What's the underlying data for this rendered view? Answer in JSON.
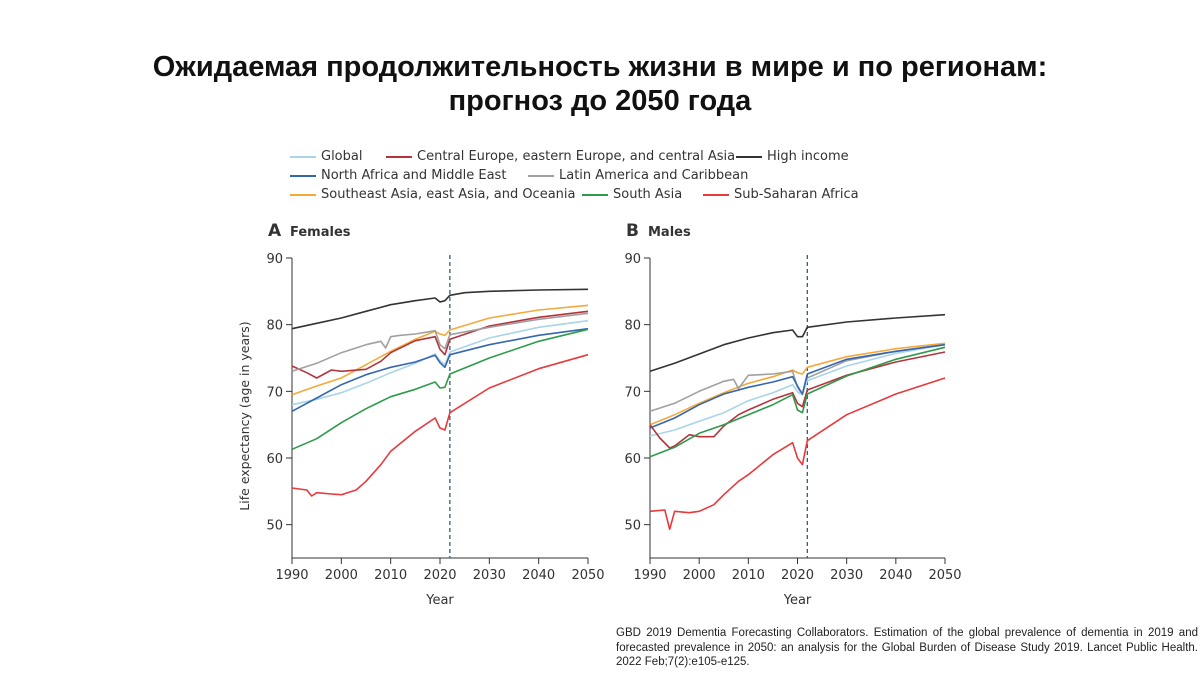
{
  "slide": {
    "title_line1": "Ожидаемая продолжительность жизни в мире и по регионам:",
    "title_line2": "прогноз до 2050 года",
    "citation": "GBD 2019 Dementia Forecasting Collaborators. Estimation of the global prevalence of dementia in 2019 and forecasted prevalence in 2050: an analysis for the Global Burden of Disease Study 2019. Lancet Public Health. 2022 Feb;7(2):e105-e125."
  },
  "legend": [
    {
      "name": "Global",
      "color": "#a8d5e8"
    },
    {
      "name": "Central Europe, eastern Europe, and central Asia",
      "color": "#b5343c"
    },
    {
      "name": "High income",
      "color": "#333333"
    },
    {
      "name": "North Africa and Middle East",
      "color": "#3566b0"
    },
    {
      "name": "Latin America and Caribbean",
      "color": "#a0a0a0"
    },
    {
      "name": "Southeast Asia, east Asia, and Oceania",
      "color": "#f4a93c"
    },
    {
      "name": "South Asia",
      "color": "#2e9a4a"
    },
    {
      "name": "Sub-Saharan Africa",
      "color": "#e8393c"
    }
  ],
  "chart_data": [
    {
      "type": "line",
      "panel_letter": "A",
      "title": "Females",
      "xlabel": "Year",
      "ylabel": "Life expectancy (age in years)",
      "xlim": [
        1990,
        2050
      ],
      "ylim": [
        45,
        90
      ],
      "xticks": [
        1990,
        2000,
        2010,
        2020,
        2030,
        2040,
        2050
      ],
      "yticks": [
        50,
        60,
        70,
        80,
        90
      ],
      "forecast_start": 2022,
      "series": [
        {
          "name": "High income",
          "color": "#333333",
          "x": [
            1990,
            1995,
            2000,
            2005,
            2010,
            2015,
            2019,
            2020,
            2021,
            2022,
            2025,
            2030,
            2040,
            2050
          ],
          "y": [
            79.4,
            80.2,
            81.0,
            82.0,
            83.0,
            83.6,
            84.0,
            83.4,
            83.6,
            84.4,
            84.8,
            85.0,
            85.2,
            85.3
          ]
        },
        {
          "name": "Southeast Asia, east Asia, and Oceania",
          "color": "#f4a93c",
          "x": [
            1990,
            1995,
            2000,
            2005,
            2010,
            2015,
            2019,
            2020,
            2021,
            2022,
            2030,
            2040,
            2050
          ],
          "y": [
            69.5,
            70.8,
            72.0,
            74.0,
            76.0,
            77.8,
            79.0,
            78.6,
            78.4,
            79.2,
            81.0,
            82.2,
            82.9
          ]
        },
        {
          "name": "Central Europe, eastern Europe, and central Asia",
          "color": "#b5343c",
          "x": [
            1990,
            1993,
            1995,
            1998,
            2000,
            2005,
            2008,
            2010,
            2015,
            2019,
            2020,
            2021,
            2022,
            2030,
            2040,
            2050
          ],
          "y": [
            73.8,
            72.8,
            72.0,
            73.2,
            73.0,
            73.3,
            74.5,
            75.8,
            77.6,
            78.2,
            76.3,
            75.5,
            77.8,
            79.8,
            81.1,
            82.0
          ]
        },
        {
          "name": "Latin America and Caribbean",
          "color": "#a0a0a0",
          "x": [
            1990,
            1995,
            2000,
            2005,
            2008,
            2009,
            2010,
            2012,
            2015,
            2019,
            2020,
            2021,
            2022,
            2030,
            2040,
            2050
          ],
          "y": [
            73.0,
            74.2,
            75.8,
            77.0,
            77.5,
            76.5,
            78.2,
            78.4,
            78.6,
            79.1,
            77.0,
            76.4,
            78.5,
            79.6,
            80.8,
            81.7
          ]
        },
        {
          "name": "Global",
          "color": "#a8d5e8",
          "x": [
            1990,
            1995,
            2000,
            2005,
            2010,
            2015,
            2019,
            2020,
            2021,
            2022,
            2030,
            2040,
            2050
          ],
          "y": [
            68.0,
            68.8,
            69.8,
            71.2,
            72.8,
            74.2,
            75.6,
            74.6,
            74.0,
            75.9,
            78.0,
            79.6,
            80.6
          ]
        },
        {
          "name": "North Africa and Middle East",
          "color": "#3566b0",
          "x": [
            1990,
            1995,
            2000,
            2005,
            2010,
            2015,
            2019,
            2020,
            2021,
            2022,
            2030,
            2040,
            2050
          ],
          "y": [
            67.0,
            69.0,
            71.0,
            72.5,
            73.6,
            74.4,
            75.4,
            74.3,
            73.6,
            75.5,
            77.0,
            78.4,
            79.4
          ]
        },
        {
          "name": "South Asia",
          "color": "#2e9a4a",
          "x": [
            1990,
            1995,
            2000,
            2005,
            2010,
            2015,
            2019,
            2020,
            2021,
            2022,
            2030,
            2040,
            2050
          ],
          "y": [
            61.3,
            62.9,
            65.3,
            67.4,
            69.2,
            70.3,
            71.4,
            70.5,
            70.6,
            72.6,
            75.0,
            77.5,
            79.3
          ]
        },
        {
          "name": "Sub-Saharan Africa",
          "color": "#e8393c",
          "x": [
            1990,
            1993,
            1994,
            1995,
            1998,
            2000,
            2003,
            2005,
            2008,
            2010,
            2015,
            2019,
            2020,
            2021,
            2022,
            2030,
            2040,
            2050
          ],
          "y": [
            55.5,
            55.2,
            54.3,
            54.8,
            54.6,
            54.5,
            55.2,
            56.5,
            59.0,
            61.0,
            64.0,
            66.0,
            64.5,
            64.2,
            66.8,
            70.5,
            73.4,
            75.5
          ]
        }
      ]
    },
    {
      "type": "line",
      "panel_letter": "B",
      "title": "Males",
      "xlabel": "Year",
      "ylabel": "",
      "xlim": [
        1990,
        2050
      ],
      "ylim": [
        45,
        90
      ],
      "xticks": [
        1990,
        2000,
        2010,
        2020,
        2030,
        2040,
        2050
      ],
      "yticks": [
        50,
        60,
        70,
        80,
        90
      ],
      "forecast_start": 2022,
      "series": [
        {
          "name": "High income",
          "color": "#333333",
          "x": [
            1990,
            1995,
            2000,
            2005,
            2010,
            2015,
            2019,
            2020,
            2021,
            2022,
            2030,
            2040,
            2050
          ],
          "y": [
            73.0,
            74.2,
            75.6,
            77.0,
            78.0,
            78.8,
            79.2,
            78.2,
            78.2,
            79.6,
            80.4,
            81.0,
            81.5
          ]
        },
        {
          "name": "Southeast Asia, east Asia, and Oceania",
          "color": "#f4a93c",
          "x": [
            1990,
            1995,
            2000,
            2005,
            2010,
            2015,
            2019,
            2020,
            2021,
            2022,
            2030,
            2040,
            2050
          ],
          "y": [
            65.0,
            66.5,
            68.2,
            69.8,
            71.2,
            72.2,
            73.2,
            72.8,
            72.6,
            73.6,
            75.2,
            76.4,
            77.2
          ]
        },
        {
          "name": "Latin America and Caribbean",
          "color": "#a0a0a0",
          "x": [
            1990,
            1995,
            2000,
            2005,
            2007,
            2008,
            2010,
            2015,
            2019,
            2020,
            2021,
            2022,
            2030,
            2040,
            2050
          ],
          "y": [
            67.0,
            68.2,
            70.0,
            71.5,
            71.8,
            70.4,
            72.4,
            72.6,
            73.0,
            70.6,
            69.5,
            72.0,
            74.6,
            76.0,
            77.0
          ]
        },
        {
          "name": "Global",
          "color": "#a8d5e8",
          "x": [
            1990,
            1995,
            2000,
            2005,
            2010,
            2015,
            2019,
            2020,
            2021,
            2022,
            2030,
            2040,
            2050
          ],
          "y": [
            63.3,
            64.2,
            65.5,
            66.8,
            68.6,
            69.8,
            71.0,
            69.9,
            69.5,
            71.6,
            73.8,
            75.7,
            77.0
          ]
        },
        {
          "name": "North Africa and Middle East",
          "color": "#3566b0",
          "x": [
            1990,
            1995,
            2000,
            2005,
            2010,
            2015,
            2019,
            2020,
            2021,
            2022,
            2030,
            2040,
            2050
          ],
          "y": [
            64.5,
            66.0,
            68.0,
            69.6,
            70.6,
            71.4,
            72.2,
            70.8,
            69.6,
            72.6,
            74.8,
            76.0,
            77.0
          ]
        },
        {
          "name": "Central Europe, eastern Europe, and central Asia",
          "color": "#b5343c",
          "x": [
            1990,
            1992,
            1994,
            1995,
            1998,
            2000,
            2003,
            2005,
            2008,
            2010,
            2015,
            2019,
            2020,
            2021,
            2022,
            2030,
            2040,
            2050
          ],
          "y": [
            65.0,
            63.0,
            61.5,
            61.8,
            63.5,
            63.2,
            63.2,
            64.8,
            66.5,
            67.2,
            68.8,
            69.8,
            68.2,
            67.7,
            70.2,
            72.4,
            74.4,
            75.9
          ]
        },
        {
          "name": "South Asia",
          "color": "#2e9a4a",
          "x": [
            1990,
            1995,
            2000,
            2005,
            2010,
            2015,
            2019,
            2020,
            2021,
            2022,
            2030,
            2040,
            2050
          ],
          "y": [
            60.2,
            61.6,
            63.7,
            65.0,
            66.5,
            68.0,
            69.5,
            67.2,
            66.8,
            69.6,
            72.3,
            74.8,
            76.6
          ]
        },
        {
          "name": "Sub-Saharan Africa",
          "color": "#e8393c",
          "x": [
            1990,
            1993,
            1994,
            1995,
            1998,
            2000,
            2003,
            2005,
            2008,
            2010,
            2015,
            2019,
            2020,
            2021,
            2022,
            2030,
            2040,
            2050
          ],
          "y": [
            52.0,
            52.2,
            49.3,
            52.0,
            51.8,
            52.0,
            53.0,
            54.5,
            56.5,
            57.5,
            60.5,
            62.3,
            60.0,
            59.0,
            62.6,
            66.5,
            69.6,
            72.0
          ]
        }
      ]
    }
  ]
}
